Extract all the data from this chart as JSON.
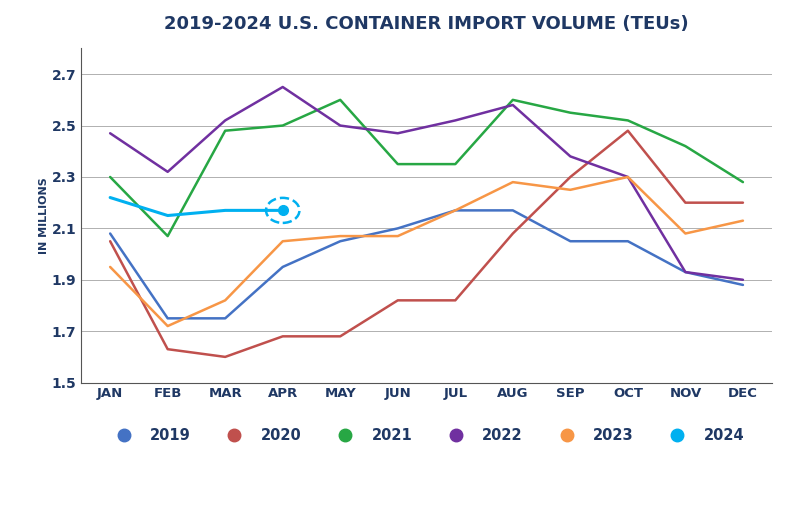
{
  "title": "2019-2024 U.S. CONTAINER IMPORT VOLUME (TEUs)",
  "ylabel": "IN MILLIONS",
  "months": [
    "JAN",
    "FEB",
    "MAR",
    "APR",
    "MAY",
    "JUN",
    "JUL",
    "AUG",
    "SEP",
    "OCT",
    "NOV",
    "DEC"
  ],
  "ylim": [
    1.5,
    2.8
  ],
  "yticks": [
    1.5,
    1.7,
    1.9,
    2.1,
    2.3,
    2.5,
    2.7
  ],
  "series": {
    "2019": {
      "values": [
        2.08,
        1.75,
        1.75,
        1.95,
        2.05,
        2.1,
        2.17,
        2.17,
        2.05,
        2.05,
        1.93,
        1.88
      ],
      "color": "#4472c4",
      "linewidth": 1.8
    },
    "2020": {
      "values": [
        2.05,
        1.63,
        1.6,
        1.68,
        1.68,
        1.82,
        1.82,
        2.08,
        2.3,
        2.48,
        2.2,
        2.2
      ],
      "color": "#c0504d",
      "linewidth": 1.8
    },
    "2021": {
      "values": [
        2.3,
        2.07,
        2.48,
        2.5,
        2.6,
        2.35,
        2.35,
        2.6,
        2.55,
        2.52,
        2.42,
        2.28
      ],
      "color": "#27a744",
      "linewidth": 1.8
    },
    "2022": {
      "values": [
        2.47,
        2.32,
        2.52,
        2.65,
        2.5,
        2.47,
        2.52,
        2.58,
        2.38,
        2.3,
        1.93,
        1.9
      ],
      "color": "#7030a0",
      "linewidth": 1.8
    },
    "2023": {
      "values": [
        1.95,
        1.72,
        1.82,
        2.05,
        2.07,
        2.07,
        2.17,
        2.28,
        2.25,
        2.3,
        2.08,
        2.13
      ],
      "color": "#f79646",
      "linewidth": 1.8
    },
    "2024": {
      "values": [
        2.22,
        2.15,
        2.17,
        2.17,
        null,
        null,
        null,
        null,
        null,
        null,
        null,
        null
      ],
      "color": "#00b0f0",
      "linewidth": 2.2
    }
  },
  "highlight_point": {
    "year": "2024",
    "month_index": 3,
    "value": 2.17
  },
  "background_color": "#ffffff",
  "grid_color": "#b0b0b0",
  "title_color": "#1f3864",
  "axis_label_color": "#1f3864",
  "tick_color": "#1f3864",
  "legend_years": [
    "2019",
    "2020",
    "2021",
    "2022",
    "2023",
    "2024"
  ]
}
